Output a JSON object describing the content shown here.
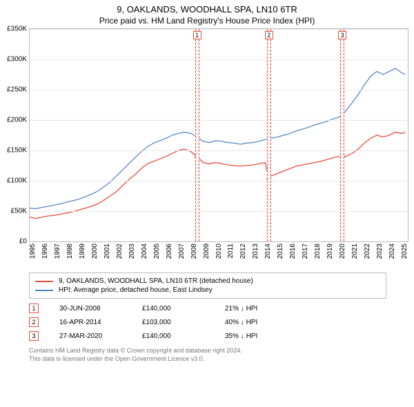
{
  "title": "9, OAKLANDS, WOODHALL SPA, LN10 6TR",
  "subtitle": "Price paid vs. HM Land Registry's House Price Index (HPI)",
  "chart": {
    "type": "line",
    "ylabel_prefix": "£",
    "ylim": [
      0,
      350000
    ],
    "ytick_step": 50000,
    "yticks": [
      "£0",
      "£50K",
      "£100K",
      "£150K",
      "£200K",
      "£250K",
      "£300K",
      "£350K"
    ],
    "xlim": [
      1995,
      2025.5
    ],
    "xticks": [
      1995,
      1996,
      1997,
      1998,
      1999,
      2000,
      2001,
      2002,
      2003,
      2004,
      2005,
      2006,
      2007,
      2008,
      2009,
      2010,
      2011,
      2012,
      2013,
      2014,
      2015,
      2016,
      2017,
      2018,
      2019,
      2020,
      2021,
      2022,
      2023,
      2024,
      2025
    ],
    "background_color": "#ffffff",
    "grid_color": "#e8e8e8",
    "marker_band_color": "#f4f4f4",
    "marker_border_color": "#e74c3c",
    "series": [
      {
        "name": "property",
        "label": "9, OAKLANDS, WOODHALL SPA, LN10 6TR (detached house)",
        "color": "#e74c3c",
        "width": 1.3,
        "points": [
          [
            1995,
            40000
          ],
          [
            1995.5,
            38000
          ],
          [
            1996,
            40000
          ],
          [
            1996.5,
            42000
          ],
          [
            1997,
            43000
          ],
          [
            1997.5,
            45000
          ],
          [
            1998,
            47000
          ],
          [
            1998.5,
            49000
          ],
          [
            1999,
            52000
          ],
          [
            1999.5,
            55000
          ],
          [
            2000,
            58000
          ],
          [
            2000.5,
            62000
          ],
          [
            2001,
            68000
          ],
          [
            2001.5,
            75000
          ],
          [
            2002,
            82000
          ],
          [
            2002.5,
            92000
          ],
          [
            2003,
            102000
          ],
          [
            2003.5,
            110000
          ],
          [
            2004,
            120000
          ],
          [
            2004.5,
            128000
          ],
          [
            2005,
            132000
          ],
          [
            2005.5,
            136000
          ],
          [
            2006,
            140000
          ],
          [
            2006.5,
            145000
          ],
          [
            2007,
            150000
          ],
          [
            2007.5,
            152000
          ],
          [
            2008,
            148000
          ],
          [
            2008.5,
            140000
          ],
          [
            2009,
            130000
          ],
          [
            2009.5,
            128000
          ],
          [
            2010,
            130000
          ],
          [
            2010.5,
            128000
          ],
          [
            2011,
            126000
          ],
          [
            2011.5,
            125000
          ],
          [
            2012,
            124000
          ],
          [
            2012.5,
            125000
          ],
          [
            2013,
            126000
          ],
          [
            2013.5,
            128000
          ],
          [
            2014,
            130000
          ],
          [
            2014.3,
            103000
          ],
          [
            2014.5,
            108000
          ],
          [
            2015,
            112000
          ],
          [
            2015.5,
            116000
          ],
          [
            2016,
            120000
          ],
          [
            2016.5,
            124000
          ],
          [
            2017,
            126000
          ],
          [
            2017.5,
            128000
          ],
          [
            2018,
            130000
          ],
          [
            2018.5,
            132000
          ],
          [
            2019,
            135000
          ],
          [
            2019.5,
            138000
          ],
          [
            2020,
            140000
          ],
          [
            2020.5,
            140000
          ],
          [
            2021,
            145000
          ],
          [
            2021.5,
            152000
          ],
          [
            2022,
            162000
          ],
          [
            2022.5,
            170000
          ],
          [
            2023,
            175000
          ],
          [
            2023.5,
            172000
          ],
          [
            2024,
            175000
          ],
          [
            2024.5,
            180000
          ],
          [
            2025,
            178000
          ],
          [
            2025.3,
            180000
          ]
        ]
      },
      {
        "name": "hpi",
        "label": "HPI: Average price, detached house, East Lindsey",
        "color": "#4a7fc4",
        "width": 1.2,
        "points": [
          [
            1995,
            55000
          ],
          [
            1995.5,
            54000
          ],
          [
            1996,
            56000
          ],
          [
            1996.5,
            58000
          ],
          [
            1997,
            60000
          ],
          [
            1997.5,
            62000
          ],
          [
            1998,
            65000
          ],
          [
            1998.5,
            67000
          ],
          [
            1999,
            70000
          ],
          [
            1999.5,
            74000
          ],
          [
            2000,
            78000
          ],
          [
            2000.5,
            83000
          ],
          [
            2001,
            90000
          ],
          [
            2001.5,
            98000
          ],
          [
            2002,
            108000
          ],
          [
            2002.5,
            118000
          ],
          [
            2003,
            128000
          ],
          [
            2003.5,
            138000
          ],
          [
            2004,
            148000
          ],
          [
            2004.5,
            156000
          ],
          [
            2005,
            162000
          ],
          [
            2005.5,
            166000
          ],
          [
            2006,
            170000
          ],
          [
            2006.5,
            175000
          ],
          [
            2007,
            178000
          ],
          [
            2007.5,
            180000
          ],
          [
            2008,
            178000
          ],
          [
            2008.5,
            172000
          ],
          [
            2009,
            165000
          ],
          [
            2009.5,
            163000
          ],
          [
            2010,
            166000
          ],
          [
            2010.5,
            165000
          ],
          [
            2011,
            163000
          ],
          [
            2011.5,
            162000
          ],
          [
            2012,
            160000
          ],
          [
            2012.5,
            162000
          ],
          [
            2013,
            163000
          ],
          [
            2013.5,
            165000
          ],
          [
            2014,
            168000
          ],
          [
            2014.5,
            170000
          ],
          [
            2015,
            172000
          ],
          [
            2015.5,
            175000
          ],
          [
            2016,
            178000
          ],
          [
            2016.5,
            182000
          ],
          [
            2017,
            185000
          ],
          [
            2017.5,
            188000
          ],
          [
            2018,
            192000
          ],
          [
            2018.5,
            195000
          ],
          [
            2019,
            198000
          ],
          [
            2019.5,
            202000
          ],
          [
            2020,
            205000
          ],
          [
            2020.5,
            215000
          ],
          [
            2021,
            228000
          ],
          [
            2021.5,
            242000
          ],
          [
            2022,
            258000
          ],
          [
            2022.5,
            272000
          ],
          [
            2023,
            280000
          ],
          [
            2023.5,
            275000
          ],
          [
            2024,
            280000
          ],
          [
            2024.5,
            285000
          ],
          [
            2025,
            278000
          ],
          [
            2025.3,
            275000
          ]
        ]
      }
    ],
    "sale_markers": [
      {
        "n": "1",
        "x": 2008.5,
        "y": 140000
      },
      {
        "n": "2",
        "x": 2014.3,
        "y": 103000
      },
      {
        "n": "3",
        "x": 2020.23,
        "y": 140000
      }
    ]
  },
  "legend": {
    "items": [
      {
        "color": "#e74c3c",
        "label": "9, OAKLANDS, WOODHALL SPA, LN10 6TR (detached house)"
      },
      {
        "color": "#4a7fc4",
        "label": "HPI: Average price, detached house, East Lindsey"
      }
    ]
  },
  "sales": [
    {
      "n": "1",
      "date": "30-JUN-2008",
      "price": "£140,000",
      "delta": "21% ↓ HPI"
    },
    {
      "n": "2",
      "date": "16-APR-2014",
      "price": "£103,000",
      "delta": "40% ↓ HPI"
    },
    {
      "n": "3",
      "date": "27-MAR-2020",
      "price": "£140,000",
      "delta": "35% ↓ HPI"
    }
  ],
  "footer": {
    "line1": "Contains HM Land Registry data © Crown copyright and database right 2024.",
    "line2": "This data is licensed under the Open Government Licence v3.0."
  }
}
